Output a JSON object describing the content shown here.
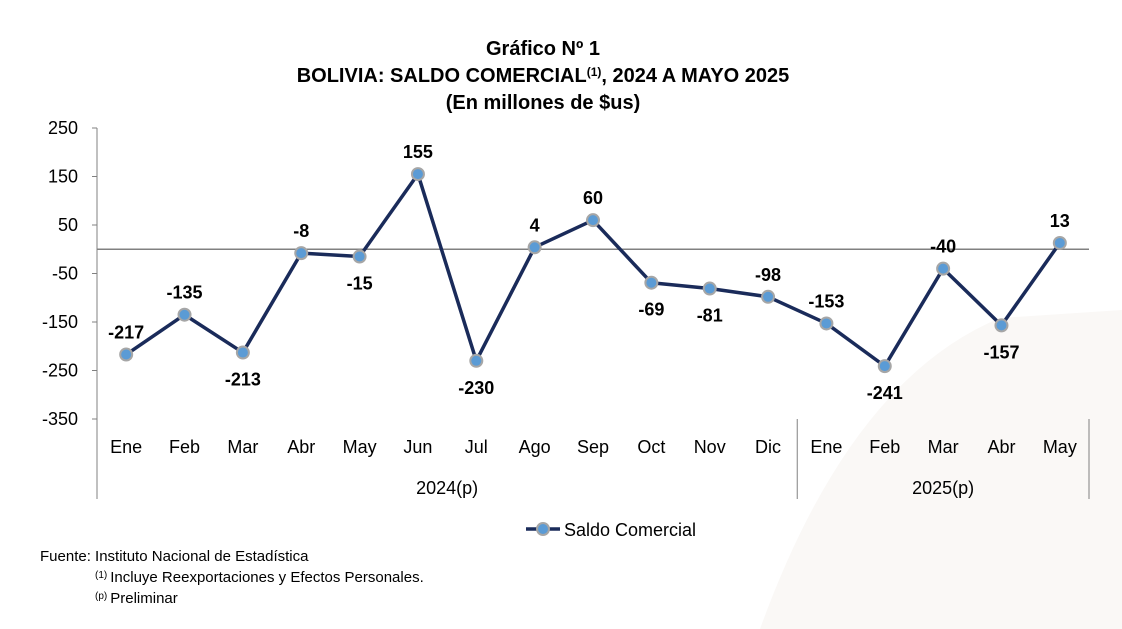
{
  "title": {
    "line1": "Gráfico Nº 1",
    "line2": "BOLIVIA: SALDO COMERCIAL",
    "line2_sup": "(1)",
    "line2_tail": ", 2024 A MAYO 2025",
    "line3": "(En millones de $us)"
  },
  "chart_data": {
    "type": "line",
    "categories": [
      "Ene",
      "Feb",
      "Mar",
      "Abr",
      "May",
      "Jun",
      "Jul",
      "Ago",
      "Sep",
      "Oct",
      "Nov",
      "Dic",
      "Ene",
      "Feb",
      "Mar",
      "Abr",
      "May"
    ],
    "groups": [
      {
        "label": "2024(p)",
        "count": 12
      },
      {
        "label": "2025(p)",
        "count": 5
      }
    ],
    "series": [
      {
        "name": "Saldo Comercial",
        "values": [
          -217,
          -135,
          -213,
          -8,
          -15,
          155,
          -230,
          4,
          60,
          -69,
          -81,
          -98,
          -153,
          -241,
          -40,
          -157,
          13
        ],
        "label_pos": [
          "above",
          "above",
          "below",
          "above",
          "below",
          "above",
          "below",
          "above",
          "above",
          "below",
          "below",
          "above",
          "above",
          "below",
          "above",
          "below",
          "above"
        ]
      }
    ],
    "ylim": [
      -350,
      250
    ],
    "yticks": [
      250,
      150,
      50,
      -50,
      -150,
      -250,
      -350
    ],
    "zero_line": true,
    "legend": "bottom",
    "colors": {
      "line": "#1a2b5a",
      "marker_fill": "#5b9bd5",
      "marker_edge": "#a6a6a6",
      "zero": "#808080"
    }
  },
  "notes": {
    "source": "Fuente: Instituto Nacional de Estadística",
    "note1_sup": "(1)",
    "note1": "Incluye Reexportaciones y Efectos Personales.",
    "note2_sup": "(p)",
    "note2": "Preliminar"
  }
}
